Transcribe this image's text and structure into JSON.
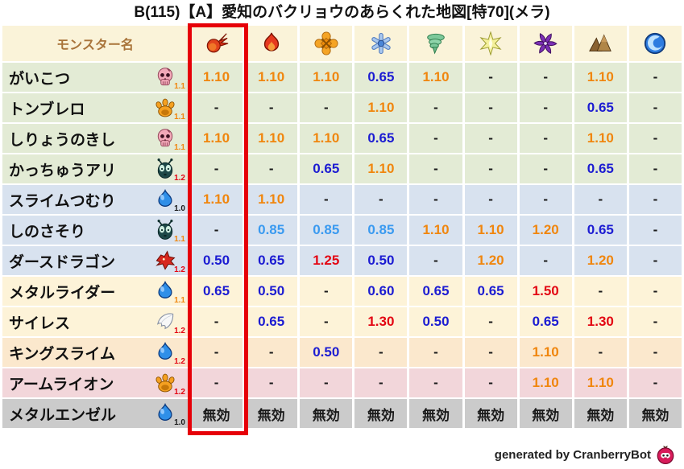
{
  "title": "B(115)【A】愛知のバクリョウのあらくれた地図[特70](メラ)",
  "footer": {
    "text": "generated by CranberryBot",
    "icon": "cranberry-bot-icon"
  },
  "colors": {
    "highlight_box": "#e60008",
    "header_bg": "#faf3d9",
    "row_bg": {
      "green": "#e3ebd5",
      "blue": "#d8e2ef",
      "cream": "#fdf3d8",
      "peach": "#fbe8cd",
      "pink": "#f2d6da",
      "gray": "#cbcbcb"
    },
    "value_colors": {
      "o": "#f0860e",
      "b": "#1c1cd2",
      "lb": "#3a9af0",
      "r": "#e30613",
      "k": "#1a1a1a"
    }
  },
  "chart_data": {
    "type": "table",
    "title": "B(115)【A】愛知のバクリョウのあらくれた地図[特70](メラ)",
    "name_column_header": "モンスター名",
    "element_columns": [
      "fireball",
      "flame",
      "bang",
      "ice",
      "wind",
      "light",
      "dark",
      "earth",
      "water"
    ],
    "highlighted_column_index": 0,
    "immune_label": "無効",
    "rows": [
      {
        "name": "がいこつ",
        "icon": "skull",
        "level": "1.1",
        "level_color": "o",
        "bg": "green",
        "cells": [
          [
            "1.10",
            "o"
          ],
          [
            "1.10",
            "o"
          ],
          [
            "1.10",
            "o"
          ],
          [
            "0.65",
            "b"
          ],
          [
            "1.10",
            "o"
          ],
          [
            "-",
            "k"
          ],
          [
            "-",
            "k"
          ],
          [
            "1.10",
            "o"
          ],
          [
            "-",
            "k"
          ]
        ]
      },
      {
        "name": "トンブレロ",
        "icon": "paw",
        "level": "1.1",
        "level_color": "o",
        "bg": "green",
        "cells": [
          [
            "-",
            "k"
          ],
          [
            "-",
            "k"
          ],
          [
            "-",
            "k"
          ],
          [
            "1.10",
            "o"
          ],
          [
            "-",
            "k"
          ],
          [
            "-",
            "k"
          ],
          [
            "-",
            "k"
          ],
          [
            "0.65",
            "b"
          ],
          [
            "-",
            "k"
          ]
        ]
      },
      {
        "name": "しりょうのきし",
        "icon": "skull",
        "level": "1.1",
        "level_color": "o",
        "bg": "green",
        "cells": [
          [
            "1.10",
            "o"
          ],
          [
            "1.10",
            "o"
          ],
          [
            "1.10",
            "o"
          ],
          [
            "0.65",
            "b"
          ],
          [
            "-",
            "k"
          ],
          [
            "-",
            "k"
          ],
          [
            "-",
            "k"
          ],
          [
            "1.10",
            "o"
          ],
          [
            "-",
            "k"
          ]
        ]
      },
      {
        "name": "かっちゅうアリ",
        "icon": "bug",
        "level": "1.2",
        "level_color": "r",
        "bg": "green",
        "cells": [
          [
            "-",
            "k"
          ],
          [
            "-",
            "k"
          ],
          [
            "0.65",
            "b"
          ],
          [
            "1.10",
            "o"
          ],
          [
            "-",
            "k"
          ],
          [
            "-",
            "k"
          ],
          [
            "-",
            "k"
          ],
          [
            "0.65",
            "b"
          ],
          [
            "-",
            "k"
          ]
        ]
      },
      {
        "name": "スライムつむり",
        "icon": "slime",
        "level": "1.0",
        "level_color": "k",
        "bg": "blue",
        "cells": [
          [
            "1.10",
            "o"
          ],
          [
            "1.10",
            "o"
          ],
          [
            "-",
            "k"
          ],
          [
            "-",
            "k"
          ],
          [
            "-",
            "k"
          ],
          [
            "-",
            "k"
          ],
          [
            "-",
            "k"
          ],
          [
            "-",
            "k"
          ],
          [
            "-",
            "k"
          ]
        ]
      },
      {
        "name": "しのさそり",
        "icon": "bug",
        "level": "1.1",
        "level_color": "o",
        "bg": "blue",
        "cells": [
          [
            "-",
            "k"
          ],
          [
            "0.85",
            "lb"
          ],
          [
            "0.85",
            "lb"
          ],
          [
            "0.85",
            "lb"
          ],
          [
            "1.10",
            "o"
          ],
          [
            "1.10",
            "o"
          ],
          [
            "1.20",
            "o"
          ],
          [
            "0.65",
            "b"
          ],
          [
            "-",
            "k"
          ]
        ]
      },
      {
        "name": "ダースドラゴン",
        "icon": "dragon",
        "level": "1.2",
        "level_color": "r",
        "bg": "blue",
        "cells": [
          [
            "0.50",
            "b"
          ],
          [
            "0.65",
            "b"
          ],
          [
            "1.25",
            "r"
          ],
          [
            "0.50",
            "b"
          ],
          [
            "-",
            "k"
          ],
          [
            "1.20",
            "o"
          ],
          [
            "-",
            "k"
          ],
          [
            "1.20",
            "o"
          ],
          [
            "-",
            "k"
          ]
        ]
      },
      {
        "name": "メタルライダー",
        "icon": "slime",
        "level": "1.1",
        "level_color": "o",
        "bg": "cream",
        "cells": [
          [
            "0.65",
            "b"
          ],
          [
            "0.50",
            "b"
          ],
          [
            "-",
            "k"
          ],
          [
            "0.60",
            "b"
          ],
          [
            "0.65",
            "b"
          ],
          [
            "0.65",
            "b"
          ],
          [
            "1.50",
            "r"
          ],
          [
            "-",
            "k"
          ],
          [
            "-",
            "k"
          ]
        ]
      },
      {
        "name": "サイレス",
        "icon": "wing",
        "level": "1.2",
        "level_color": "r",
        "bg": "cream",
        "cells": [
          [
            "-",
            "k"
          ],
          [
            "0.65",
            "b"
          ],
          [
            "-",
            "k"
          ],
          [
            "1.30",
            "r"
          ],
          [
            "0.50",
            "b"
          ],
          [
            "-",
            "k"
          ],
          [
            "0.65",
            "b"
          ],
          [
            "1.30",
            "r"
          ],
          [
            "-",
            "k"
          ]
        ]
      },
      {
        "name": "キングスライム",
        "icon": "slime",
        "level": "1.2",
        "level_color": "r",
        "bg": "peach",
        "cells": [
          [
            "-",
            "k"
          ],
          [
            "-",
            "k"
          ],
          [
            "0.50",
            "b"
          ],
          [
            "-",
            "k"
          ],
          [
            "-",
            "k"
          ],
          [
            "-",
            "k"
          ],
          [
            "1.10",
            "o"
          ],
          [
            "-",
            "k"
          ],
          [
            "-",
            "k"
          ]
        ]
      },
      {
        "name": "アームライオン",
        "icon": "paw",
        "level": "1.2",
        "level_color": "r",
        "bg": "pink",
        "cells": [
          [
            "-",
            "k"
          ],
          [
            "-",
            "k"
          ],
          [
            "-",
            "k"
          ],
          [
            "-",
            "k"
          ],
          [
            "-",
            "k"
          ],
          [
            "-",
            "k"
          ],
          [
            "1.10",
            "o"
          ],
          [
            "1.10",
            "o"
          ],
          [
            "-",
            "k"
          ]
        ]
      },
      {
        "name": "メタルエンゼル",
        "icon": "slime",
        "level": "1.0",
        "level_color": "k",
        "bg": "gray",
        "cells": [
          [
            "無効",
            "k"
          ],
          [
            "無効",
            "k"
          ],
          [
            "無効",
            "k"
          ],
          [
            "無効",
            "k"
          ],
          [
            "無効",
            "k"
          ],
          [
            "無効",
            "k"
          ],
          [
            "無効",
            "k"
          ],
          [
            "無効",
            "k"
          ],
          [
            "無効",
            "k"
          ]
        ]
      }
    ]
  }
}
